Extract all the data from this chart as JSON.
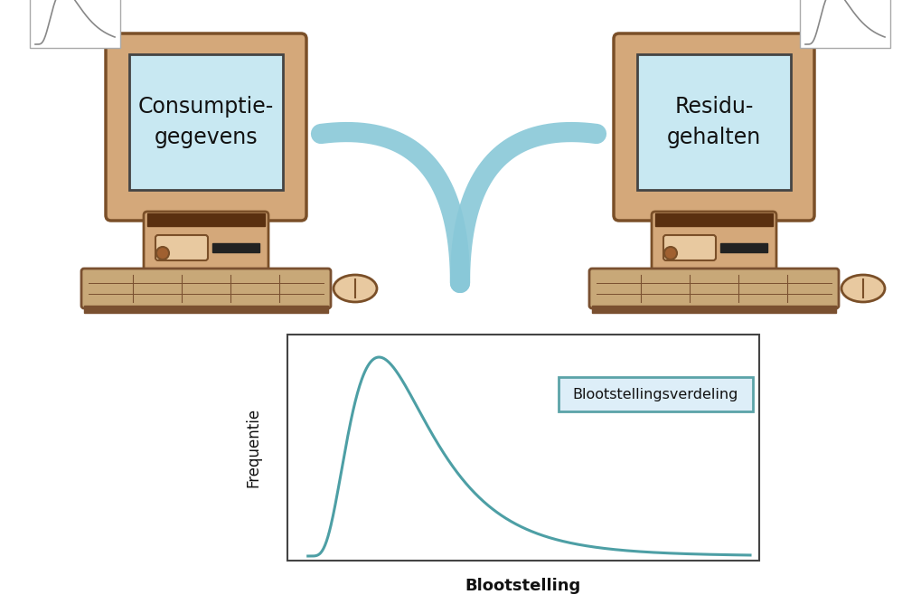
{
  "bg_color": "#ffffff",
  "teal_color": "#4d9fa5",
  "tan_color": "#d4a87a",
  "tan_light": "#e8c9a0",
  "dark_tan": "#7a4f28",
  "brown_dark": "#5a3010",
  "screen_color": "#c8e8f2",
  "kbd_color": "#c8a878",
  "kbd_dark": "#7a5030",
  "arrow_color": "#88c8d8",
  "label_left": "Consumptie-\ngegevens",
  "label_right": "Residu-\ngehalten",
  "ylabel": "Frequentie",
  "xlabel": "Blootstelling",
  "legend_label": "Blootstellingsverdeling",
  "legend_bg": "#ddeef8",
  "legend_border": "#5ba3a8"
}
